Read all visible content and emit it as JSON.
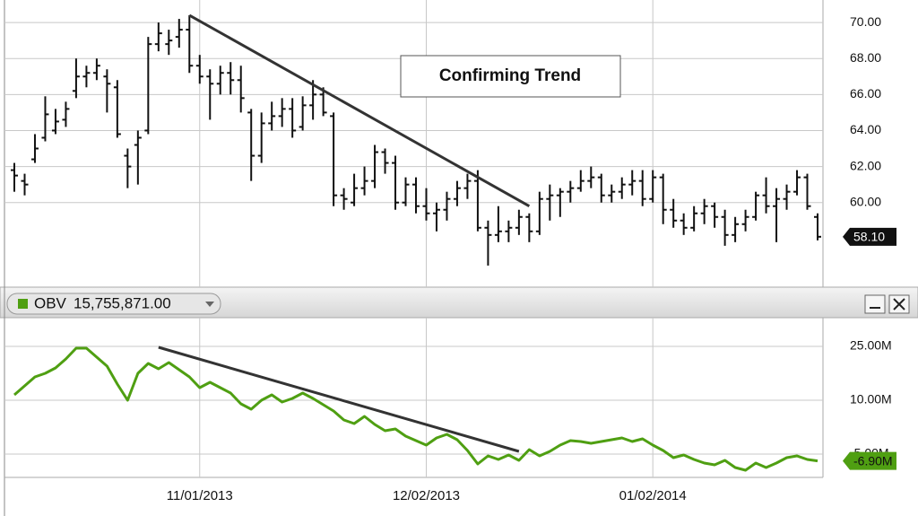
{
  "chart_data": [
    {
      "type": "ohlc",
      "color": "#111111",
      "open": [
        61.8,
        61.2,
        62.4,
        63.6,
        64.0,
        64.6,
        66.2,
        67.0,
        67.2,
        67.0,
        66.4,
        62.6,
        63.2,
        64.0,
        68.8,
        68.8,
        69.2,
        69.6,
        67.6,
        67.0,
        66.6,
        67.2,
        66.8,
        65.0,
        62.6,
        64.4,
        64.8,
        65.2,
        64.2,
        65.4,
        66.0,
        64.8,
        60.4,
        60.0,
        60.8,
        61.2,
        62.8,
        62.2,
        60.0,
        61.0,
        59.8,
        59.4,
        59.6,
        60.2,
        60.8,
        61.2,
        58.6,
        58.2,
        58.4,
        58.6,
        59.2,
        58.4,
        60.2,
        60.4,
        60.6,
        60.8,
        61.2,
        61.4,
        60.4,
        60.6,
        61.0,
        61.2,
        60.2,
        61.4,
        59.6,
        59.0,
        58.6,
        59.4,
        59.8,
        59.2,
        58.2,
        58.8,
        59.2,
        60.4,
        59.8,
        60.2,
        60.6,
        61.4,
        59.2
      ],
      "high": [
        62.2,
        61.6,
        63.8,
        65.9,
        65.2,
        65.6,
        68.0,
        67.6,
        68.0,
        67.4,
        66.8,
        63.0,
        64.0,
        69.2,
        70.0,
        69.6,
        70.2,
        70.4,
        68.2,
        67.4,
        67.6,
        67.8,
        67.6,
        65.2,
        65.0,
        65.6,
        65.8,
        65.8,
        65.9,
        66.8,
        66.4,
        65.0,
        60.8,
        61.6,
        62.0,
        63.2,
        63.0,
        62.6,
        61.4,
        61.4,
        60.8,
        60.0,
        60.6,
        61.2,
        61.6,
        61.8,
        59.0,
        59.8,
        59.0,
        59.6,
        59.4,
        60.6,
        61.0,
        60.8,
        61.2,
        61.8,
        62.0,
        61.6,
        61.0,
        61.4,
        61.8,
        61.8,
        61.8,
        61.6,
        60.2,
        59.4,
        59.8,
        60.2,
        60.0,
        59.6,
        59.2,
        59.6,
        60.6,
        61.4,
        60.8,
        61.0,
        61.8,
        61.6,
        59.4
      ],
      "low": [
        60.6,
        60.4,
        62.2,
        63.4,
        63.8,
        64.2,
        65.8,
        66.4,
        66.8,
        65.0,
        63.6,
        60.8,
        61.0,
        63.8,
        68.4,
        68.2,
        68.6,
        67.2,
        66.6,
        64.6,
        66.0,
        66.0,
        65.0,
        61.2,
        62.2,
        64.0,
        64.2,
        63.6,
        64.0,
        64.6,
        64.8,
        59.8,
        59.6,
        59.8,
        60.4,
        60.8,
        61.6,
        59.6,
        59.8,
        59.4,
        59.0,
        58.4,
        59.0,
        59.8,
        60.2,
        58.4,
        56.5,
        57.8,
        57.8,
        58.2,
        57.8,
        58.2,
        59.0,
        59.2,
        60.0,
        60.6,
        60.8,
        60.0,
        60.0,
        60.2,
        60.4,
        59.8,
        60.0,
        58.8,
        58.6,
        58.2,
        58.4,
        58.8,
        58.6,
        57.6,
        57.8,
        58.4,
        59.0,
        59.4,
        57.8,
        59.6,
        60.4,
        59.6,
        57.9
      ],
      "close": [
        61.5,
        61.0,
        63.0,
        64.9,
        64.5,
        65.2,
        67.0,
        67.2,
        67.6,
        66.6,
        63.8,
        62.0,
        63.6,
        68.8,
        69.4,
        69.0,
        69.6,
        67.6,
        67.0,
        66.6,
        67.2,
        66.8,
        65.8,
        62.6,
        64.4,
        64.8,
        65.2,
        64.0,
        65.4,
        66.0,
        65.0,
        60.4,
        60.2,
        60.8,
        61.2,
        62.8,
        62.2,
        60.0,
        61.0,
        59.8,
        59.4,
        59.6,
        60.2,
        60.8,
        61.2,
        58.6,
        58.2,
        58.4,
        58.6,
        59.2,
        58.4,
        60.2,
        60.4,
        60.6,
        60.8,
        61.2,
        61.4,
        60.4,
        60.6,
        61.0,
        61.2,
        60.2,
        61.4,
        59.6,
        59.0,
        58.6,
        59.4,
        59.8,
        59.2,
        58.2,
        58.8,
        59.2,
        60.4,
        59.8,
        60.2,
        60.6,
        61.4,
        59.8,
        58.1
      ],
      "value_labels": [
        null,
        null,
        null,
        null,
        null,
        null,
        null,
        null,
        null,
        null,
        null,
        null,
        null,
        null,
        null,
        null,
        null,
        null,
        null,
        null,
        null,
        null,
        null,
        null,
        null,
        null,
        null,
        null,
        null,
        null,
        null,
        null,
        null,
        null,
        null,
        null,
        null,
        null,
        null,
        null,
        null,
        null,
        null,
        null,
        null,
        null,
        null,
        null,
        null,
        null,
        null,
        null,
        null,
        null,
        null,
        null,
        null,
        null,
        null,
        null,
        null,
        null,
        null,
        null,
        null,
        null,
        null,
        null,
        null,
        null,
        null,
        null,
        null,
        null,
        null,
        null,
        null,
        null,
        "58.10"
      ],
      "ylim": [
        55.4,
        71
      ],
      "yticks": [
        {
          "value": 60,
          "label": "60.00"
        },
        {
          "value": 62,
          "label": "62.00"
        },
        {
          "value": 64,
          "label": "64.00"
        },
        {
          "value": 66,
          "label": "66.00"
        },
        {
          "value": 68,
          "label": "68.00"
        },
        {
          "value": 70,
          "label": "70.00"
        }
      ],
      "grid": true,
      "annotation": "Confirming Trend",
      "trend_line": {
        "x": [
          17,
          50
        ],
        "y": [
          70.4,
          59.8
        ]
      }
    },
    {
      "type": "line",
      "header_value": {
        "value": 15755871,
        "label": "15,755,871.00"
      },
      "categories": [
        null,
        null,
        null,
        null,
        null,
        null,
        null,
        null,
        null,
        null,
        null,
        null,
        null,
        null,
        null,
        null,
        null,
        null,
        "11/01/2013",
        null,
        null,
        null,
        null,
        null,
        null,
        null,
        null,
        null,
        null,
        null,
        null,
        null,
        null,
        null,
        null,
        null,
        null,
        null,
        null,
        null,
        "12/02/2013",
        null,
        null,
        null,
        null,
        null,
        null,
        null,
        null,
        null,
        null,
        null,
        null,
        null,
        null,
        null,
        null,
        null,
        null,
        null,
        null,
        null,
        "01/02/2014",
        null,
        null,
        null,
        null,
        null,
        null,
        null,
        null,
        null,
        null,
        null,
        null,
        null,
        null,
        null,
        null
      ],
      "series": [
        {
          "name": "OBV",
          "color": "#4f9f12",
          "values": [
            11500000,
            14000000,
            16500000,
            17500000,
            19000000,
            21500000,
            24500000,
            24500000,
            22000000,
            19500000,
            14500000,
            10000000,
            17500000,
            20250000,
            18750000,
            20500000,
            18500000,
            16500000,
            13500000,
            15000000,
            13500000,
            12000000,
            9000000,
            7500000,
            10000000,
            11500000,
            9500000,
            10500000,
            12000000,
            10500000,
            8750000,
            7000000,
            4500000,
            3500000,
            5500000,
            3250000,
            1500000,
            2000000,
            0,
            -1250000,
            -2500000,
            -500000,
            500000,
            -1000000,
            -4000000,
            -7750000,
            -5500000,
            -6500000,
            -5250000,
            -6750000,
            -3750000,
            -5500000,
            -4250000,
            -2500000,
            -1250000,
            -1500000,
            -2000000,
            -1500000,
            -1000000,
            -500000,
            -1500000,
            -750000,
            -2500000,
            -4000000,
            -6000000,
            -5250000,
            -6500000,
            -7500000,
            -8000000,
            -6750000,
            -8750000,
            -9500000,
            -7500000,
            -8750000,
            -7500000,
            -6000000,
            -5500000,
            -6500000,
            -6900000
          ],
          "value_labels": [
            null,
            null,
            null,
            null,
            null,
            null,
            null,
            null,
            null,
            null,
            null,
            null,
            null,
            null,
            null,
            null,
            null,
            null,
            null,
            null,
            null,
            null,
            null,
            null,
            null,
            null,
            null,
            null,
            null,
            null,
            null,
            null,
            null,
            null,
            null,
            null,
            null,
            null,
            null,
            null,
            null,
            null,
            null,
            null,
            null,
            null,
            null,
            null,
            null,
            null,
            null,
            null,
            null,
            null,
            null,
            null,
            null,
            null,
            null,
            null,
            null,
            null,
            null,
            null,
            null,
            null,
            null,
            null,
            null,
            null,
            null,
            null,
            null,
            null,
            null,
            null,
            null,
            null,
            "-6.90M"
          ]
        }
      ],
      "ylim": [
        -11000000,
        32000000
      ],
      "yticks": [
        {
          "value": -5000000,
          "label": "-5.00M"
        },
        {
          "value": 10000000,
          "label": "10.00M"
        },
        {
          "value": 25000000,
          "label": "25.00M"
        }
      ],
      "grid": true,
      "trend_line": {
        "x": [
          14,
          49
        ],
        "y": [
          24750000,
          -4250000
        ]
      }
    }
  ]
}
